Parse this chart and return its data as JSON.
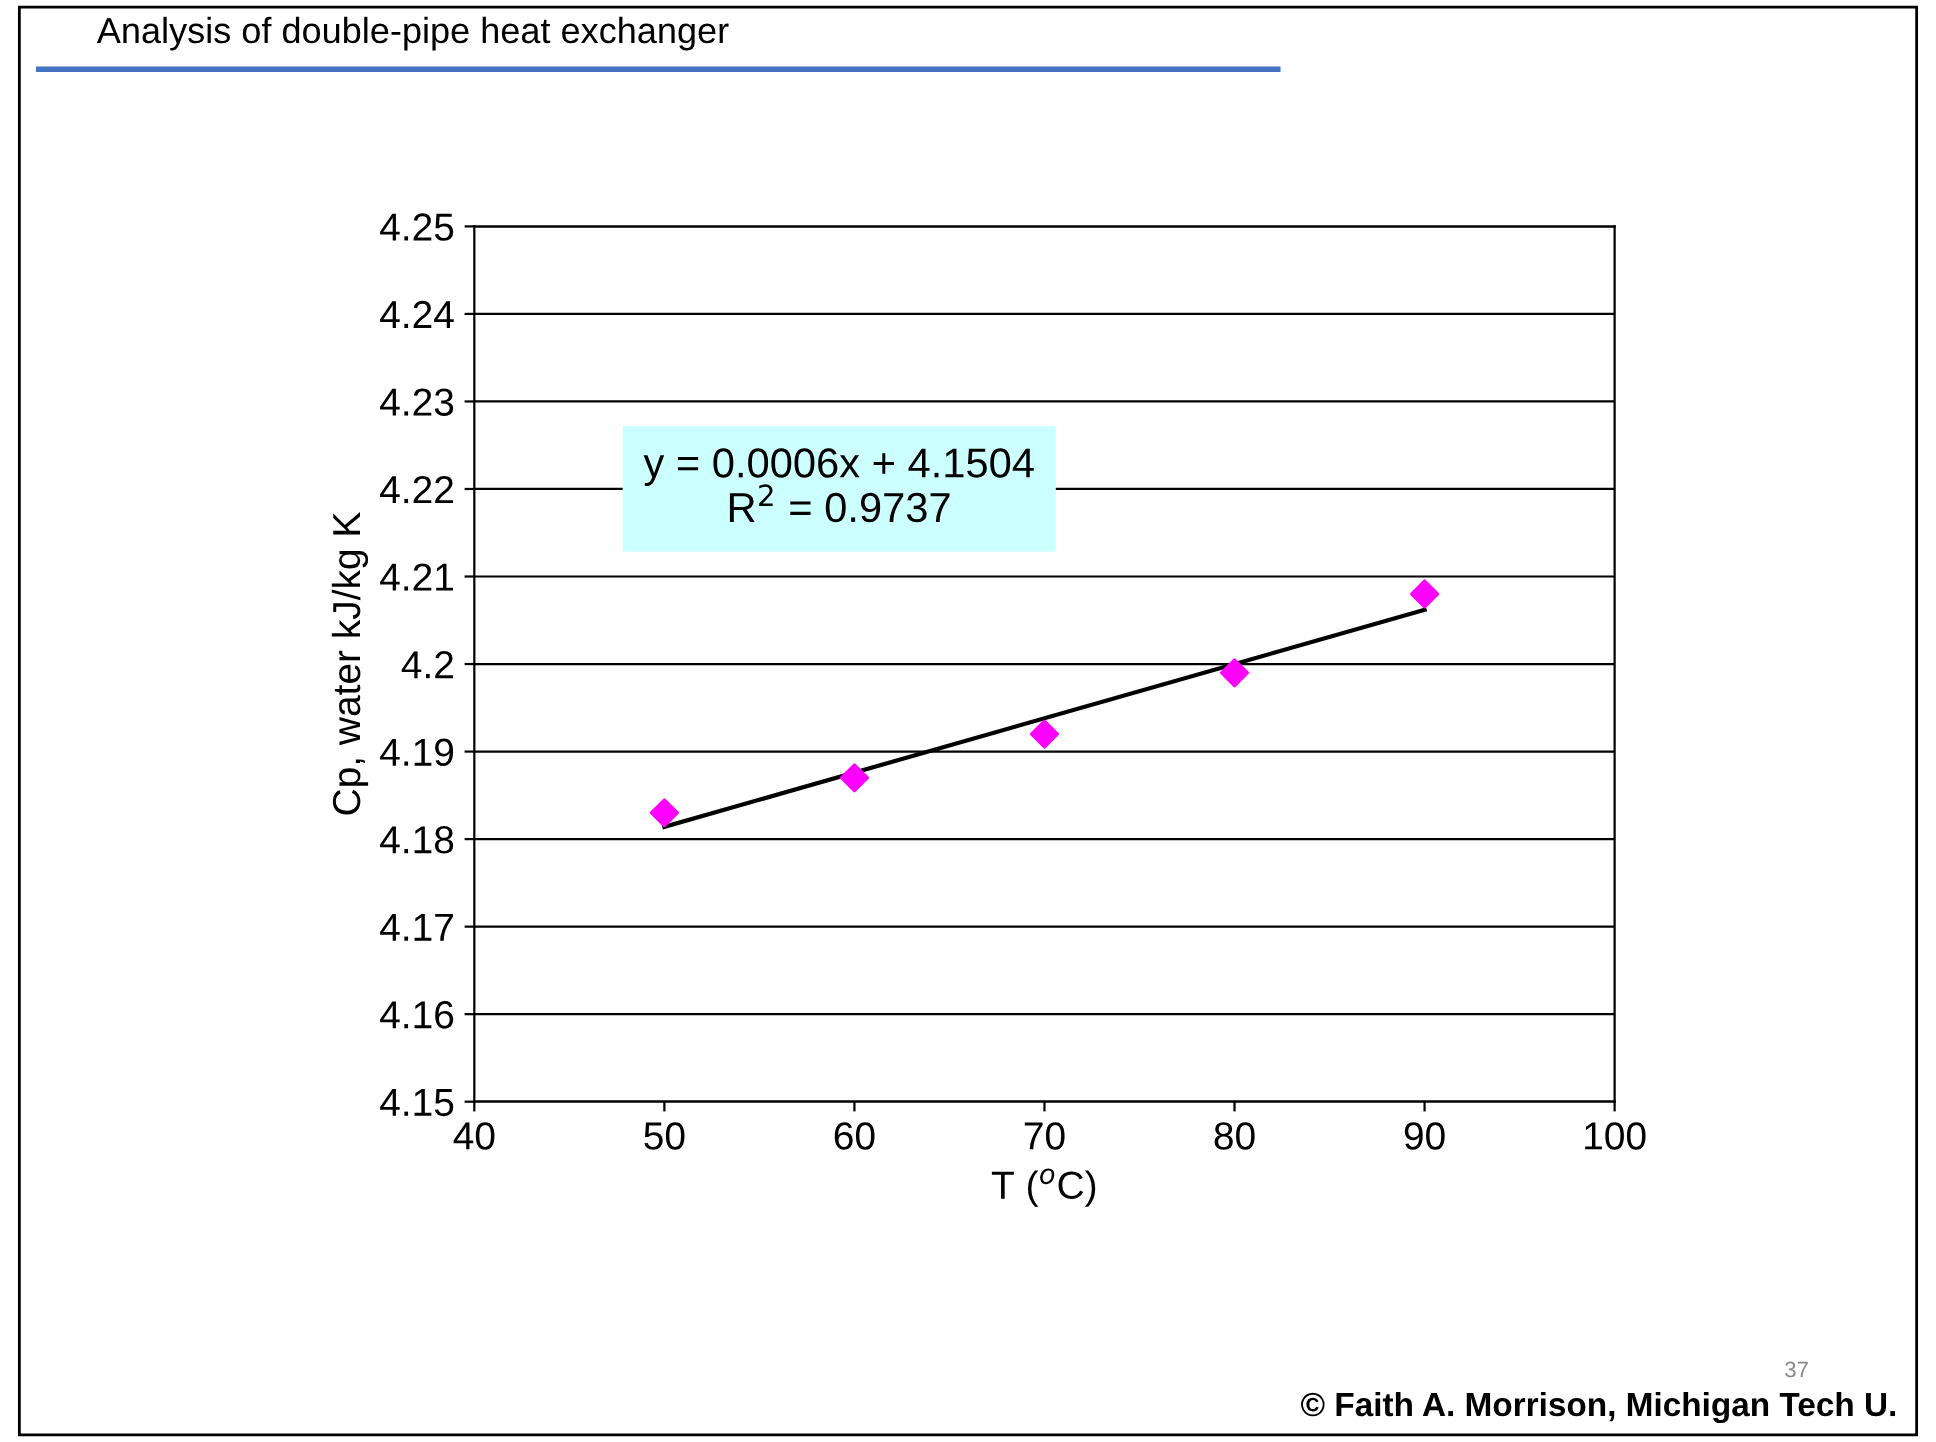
{
  "chart_data": {
    "type": "scatter",
    "title": "Analysis of double-pipe heat exchanger",
    "xlabel": "T ($^{o}$C)",
    "ylabel": "Cp, water kJ/kg K",
    "x": [
      50,
      60,
      70,
      80,
      90
    ],
    "series": [
      {
        "color": "#ff00ff",
        "marker": "diamond",
        "values": [
          4.183,
          4.187,
          4.192,
          4.199,
          4.208
        ]
      },
      {
        "type": "line",
        "color": "#000000",
        "marker": "none",
        "line_style": "solid",
        "x": [
          50,
          90
        ],
        "values": [
          4.1814,
          4.2062
        ]
      }
    ],
    "xlim": [
      40,
      100
    ],
    "xticks": [
      40,
      50,
      60,
      70,
      80,
      90,
      100
    ],
    "ylim": [
      4.15,
      4.25
    ],
    "yticks": [
      4.15,
      4.16,
      4.17,
      4.18,
      4.19,
      4.2,
      4.21,
      4.22,
      4.23,
      4.24,
      4.25
    ],
    "grid": "y",
    "legend": false,
    "annotations": [
      "y = 0.0006x + 4.1504\nR$^{2}$ = 0.9737",
      "37",
      "© Faith A. Morrison, Michigan Tech U."
    ]
  }
}
